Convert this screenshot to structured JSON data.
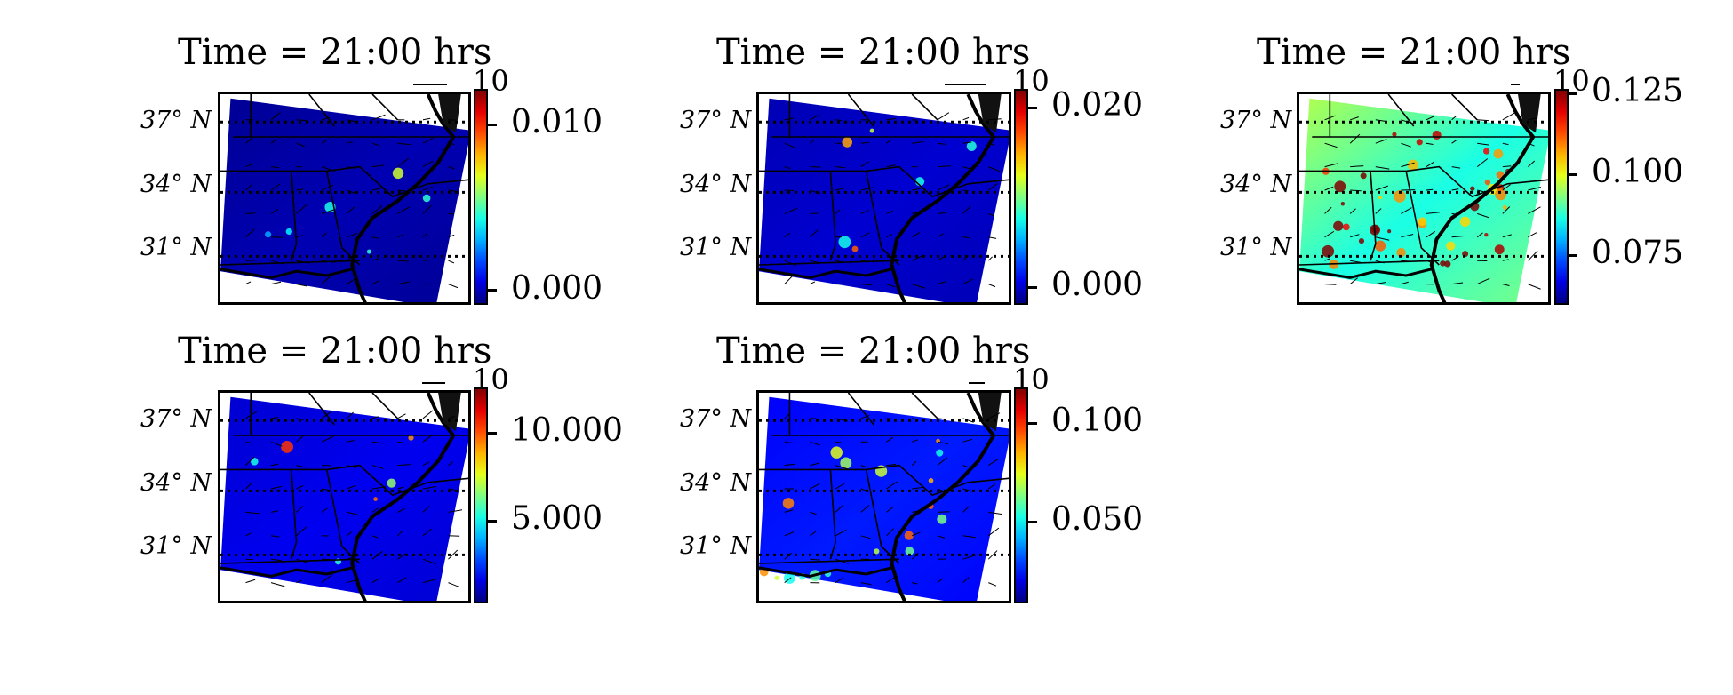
{
  "panels": [
    {
      "title": "Time = 21:00 hrs",
      "lat_labels": [
        "37° N",
        "34° N",
        "31° N"
      ],
      "quiver_key": "10",
      "colorbar_ticks": [
        "0.010",
        "0.000"
      ],
      "colormap": "jet",
      "field_level": 0.02,
      "hotspots": [
        "few"
      ]
    },
    {
      "title": "Time = 21:00 hrs",
      "lat_labels": [
        "37° N",
        "34° N",
        "31° N"
      ],
      "quiver_key": "10",
      "colorbar_ticks": [
        "0.020",
        "0.000"
      ],
      "colormap": "jet",
      "field_level": 0.05,
      "hotspots": [
        "few"
      ]
    },
    {
      "title": "Time = 21:00 hrs",
      "lat_labels": [
        "37° N",
        "34° N",
        "31° N"
      ],
      "quiver_key": "10",
      "colorbar_ticks": [
        "0.125",
        "0.100",
        "0.075"
      ],
      "colormap": "jet",
      "field_level": 0.45,
      "hotspots": [
        "many"
      ]
    },
    {
      "title": "Time = 21:00 hrs",
      "lat_labels": [
        "37° N",
        "34° N",
        "31° N"
      ],
      "quiver_key": "10",
      "colorbar_ticks": [
        "10.000",
        "5.000"
      ],
      "colormap": "jet",
      "field_level": 0.08,
      "hotspots": [
        "few"
      ]
    },
    {
      "title": "Time = 21:00 hrs",
      "lat_labels": [
        "37° N",
        "34° N",
        "31° N"
      ],
      "quiver_key": "10",
      "colorbar_ticks": [
        "0.100",
        "0.050"
      ],
      "colormap": "jet",
      "field_level": 0.12,
      "hotspots": [
        "coastal"
      ]
    }
  ]
}
